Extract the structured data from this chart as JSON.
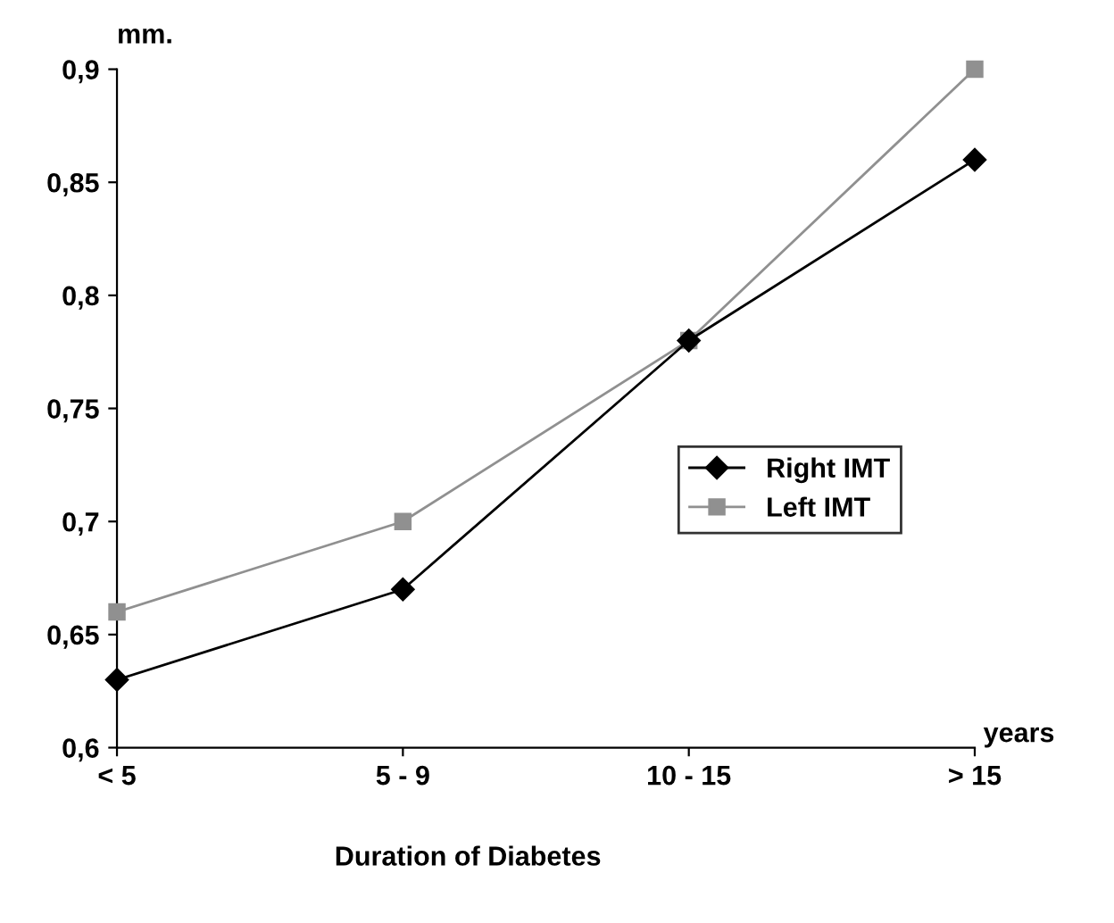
{
  "chart_data": {
    "type": "line",
    "ylabel": "mm.",
    "xlabel": "years",
    "annotations": [
      "Duration of Diabetes"
    ],
    "categories": [
      "< 5",
      "5 - 9",
      "10 - 15",
      "> 15"
    ],
    "series": [
      {
        "name": "Right IMT",
        "color": "#000000",
        "marker": "diamond",
        "values": [
          0.63,
          0.67,
          0.78,
          0.86
        ]
      },
      {
        "name": "Left IMT",
        "color": "#909090",
        "marker": "square",
        "values": [
          0.66,
          0.7,
          0.78,
          0.9
        ]
      }
    ],
    "ylim": [
      0.6,
      0.9
    ],
    "yticks": [
      {
        "value": 0.6,
        "label": "0,6"
      },
      {
        "value": 0.65,
        "label": "0,65"
      },
      {
        "value": 0.7,
        "label": "0,7"
      },
      {
        "value": 0.75,
        "label": "0,75"
      },
      {
        "value": 0.8,
        "label": "0,8"
      },
      {
        "value": 0.85,
        "label": "0,85"
      },
      {
        "value": 0.9,
        "label": "0,9"
      }
    ],
    "grid": false,
    "legend": "right",
    "line_style": "solid"
  }
}
